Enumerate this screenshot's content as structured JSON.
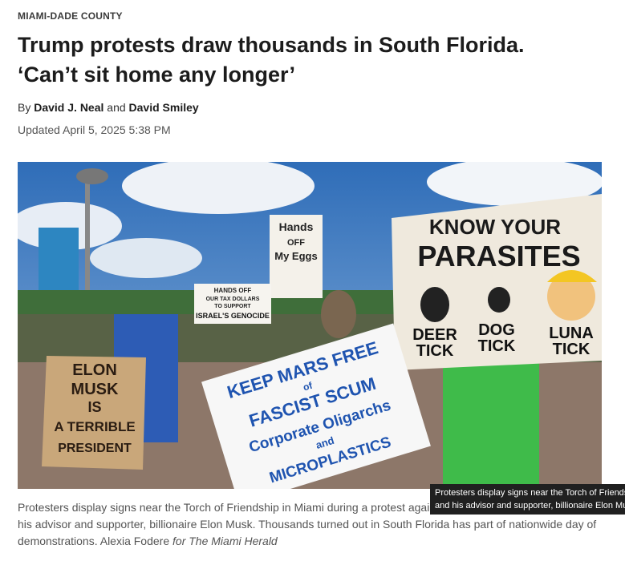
{
  "section": "MIAMI-DADE COUNTY",
  "headline": {
    "lines": [
      "Trump protests draw thousands in South Florida.",
      "‘Can’t sit home any longer’"
    ]
  },
  "byline": {
    "prefix": "By",
    "authors": [
      "David J. Neal",
      "David Smiley"
    ],
    "joiner": "and"
  },
  "updated": "Updated April 5, 2025 5:38 PM",
  "photo": {
    "signs": {
      "parasites": [
        "KNOW YOUR",
        "PARASITES"
      ],
      "ticks": [
        "DEER",
        "TICK",
        "DOG",
        "TICK",
        "LUNA",
        "TICK"
      ],
      "elon": [
        "ELON",
        "MUSK",
        "IS",
        "A TERRIBLE",
        "PRESIDENT"
      ],
      "mars": [
        "KEEP MARS FREE",
        "of",
        "FASCIST SCUM",
        "Corporate Oligarchs",
        "and",
        "MICROPLASTICS"
      ],
      "eggs": [
        "Hands",
        "OFF",
        "My Eggs"
      ],
      "tax": [
        "HANDS OFF",
        "OUR TAX DOLLARS",
        "TO SUPPORT",
        "ISRAEL'S GENOCIDE"
      ]
    }
  },
  "caption": {
    "text": "Protesters display signs near the Torch of Friendship in Miami during a protest against President Donald Trump and his advisor and supporter, billionaire Elon Musk. Thousands turned out in South Florida has part of nationwide day of demonstrations.",
    "credit": "Alexia Fodere",
    "credit_org": "for The Miami Herald"
  }
}
